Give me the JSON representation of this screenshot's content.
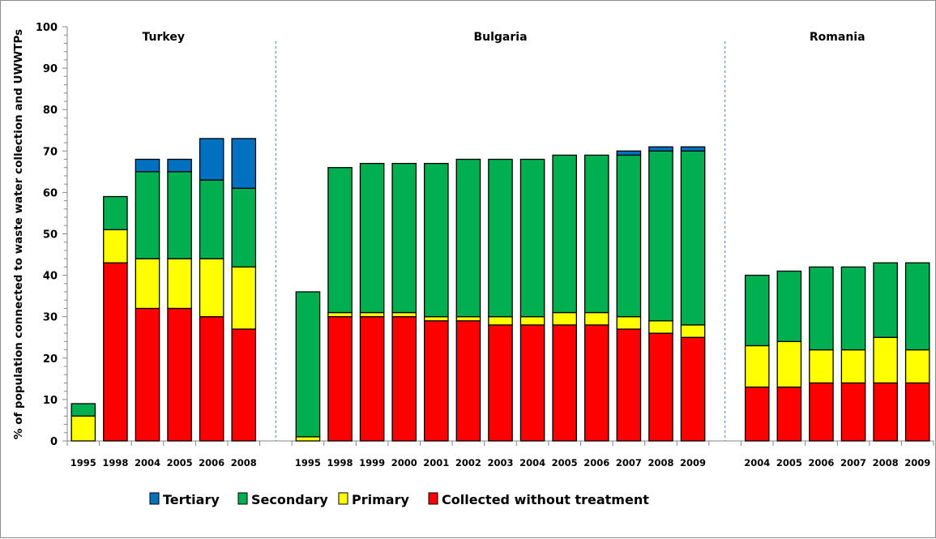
{
  "chart_data": {
    "type": "bar",
    "stacked": true,
    "title": "",
    "xlabel": "",
    "ylabel": "% of population connected to waste water collection and UWWTPs",
    "ylim": [
      0,
      100
    ],
    "y_ticks": [
      0,
      10,
      20,
      30,
      40,
      50,
      60,
      70,
      80,
      90,
      100
    ],
    "y_minor_step": 2,
    "grid": false,
    "legend_position": "bottom",
    "series": [
      {
        "key": "collected",
        "name": "Collected without treatment",
        "color": "#ff0000"
      },
      {
        "key": "primary",
        "name": "Primary",
        "color": "#ffff00"
      },
      {
        "key": "secondary",
        "name": "Secondary",
        "color": "#00b050"
      },
      {
        "key": "tertiary",
        "name": "Tertiary",
        "color": "#0070c0"
      }
    ],
    "legend_order": [
      "tertiary",
      "secondary",
      "primary",
      "collected"
    ],
    "groups": [
      {
        "name": "Turkey",
        "categories": [
          "1995",
          "1998",
          "2004",
          "2005",
          "2006",
          "2008"
        ],
        "values": {
          "collected": [
            0,
            43,
            32,
            32,
            30,
            27
          ],
          "primary": [
            6,
            8,
            12,
            12,
            14,
            15
          ],
          "secondary": [
            3,
            8,
            21,
            21,
            19,
            19
          ],
          "tertiary": [
            0,
            0,
            3,
            3,
            10,
            12
          ]
        }
      },
      {
        "name": "Bulgaria",
        "categories": [
          "1995",
          "1998",
          "1999",
          "2000",
          "2001",
          "2002",
          "2003",
          "2004",
          "2005",
          "2006",
          "2007",
          "2008",
          "2009"
        ],
        "values": {
          "collected": [
            0,
            30,
            30,
            30,
            29,
            29,
            28,
            28,
            28,
            28,
            27,
            26,
            25
          ],
          "primary": [
            1,
            1,
            1,
            1,
            1,
            1,
            2,
            2,
            3,
            3,
            3,
            3,
            3
          ],
          "secondary": [
            35,
            35,
            36,
            36,
            37,
            38,
            38,
            38,
            38,
            38,
            39,
            41,
            42
          ],
          "tertiary": [
            0,
            0,
            0,
            0,
            0,
            0,
            0,
            0,
            0,
            0,
            1,
            1,
            1
          ]
        }
      },
      {
        "name": "Romania",
        "categories": [
          "2004",
          "2005",
          "2006",
          "2007",
          "2008",
          "2009"
        ],
        "values": {
          "collected": [
            13,
            13,
            14,
            14,
            14,
            14
          ],
          "primary": [
            10,
            11,
            8,
            8,
            11,
            8
          ],
          "secondary": [
            17,
            17,
            20,
            20,
            18,
            21
          ],
          "tertiary": [
            0,
            0,
            0,
            0,
            0,
            0
          ]
        }
      }
    ],
    "divider_color": "#4f81bd"
  }
}
